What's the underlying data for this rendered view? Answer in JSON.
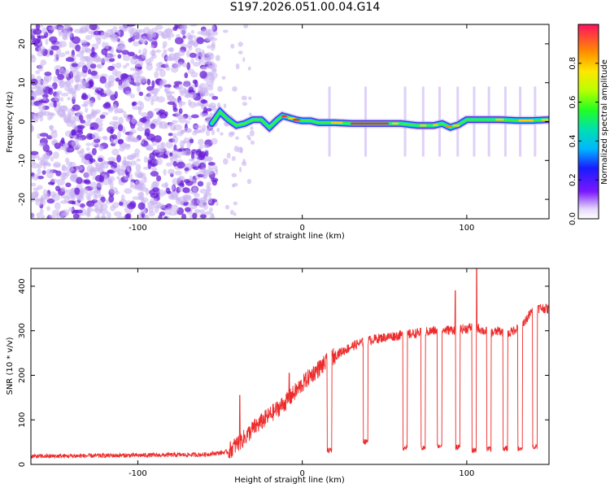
{
  "title": "S197.2026.051.00.04.G14",
  "colors": {
    "snr_line": "#ee2a2a",
    "axis": "#000000",
    "scatter_main": "#6a1fd8",
    "scatter_light": "#c9b3f0"
  },
  "chart_data": [
    {
      "type": "heatmap",
      "xlabel": "Height of straight line (km)",
      "ylabel": "Frequency (Hz)",
      "xlim": [
        -165,
        150
      ],
      "ylim": [
        -25,
        25
      ],
      "xticks": [
        -100,
        0,
        100
      ],
      "yticks": [
        -20,
        -10,
        0,
        10,
        20
      ],
      "xtick_labels": [
        "-100",
        "0",
        "100"
      ],
      "ytick_labels": [
        "-20",
        "-10",
        "0",
        "10",
        "20"
      ],
      "noise_region_km": [
        -165,
        -53
      ],
      "ridge": {
        "x": [
          -55,
          -50,
          -45,
          -40,
          -35,
          -30,
          -25,
          -20,
          -15,
          -12,
          -8,
          -4,
          0,
          5,
          10,
          20,
          30,
          40,
          50,
          60,
          70,
          80,
          85,
          90,
          95,
          100,
          110,
          120,
          130,
          140,
          150
        ],
        "freq": [
          -0.5,
          2.5,
          0.5,
          -1.0,
          -0.5,
          0.5,
          0.5,
          -1.5,
          0.5,
          1.5,
          1.0,
          0.5,
          0.2,
          0.2,
          -0.3,
          -0.3,
          -0.5,
          -0.5,
          -0.5,
          -0.5,
          -1.0,
          -1.0,
          -0.5,
          -1.5,
          -0.8,
          0.5,
          0.5,
          0.5,
          0.3,
          0.3,
          0.5
        ]
      },
      "colorbar": {
        "label": "Normalized spectral amplitude",
        "range": [
          0,
          1
        ],
        "ticks": [
          "0.0",
          "0.2",
          "0.4",
          "0.6",
          "0.8"
        ],
        "tick_values": [
          0.0,
          0.2,
          0.4,
          0.6,
          0.8
        ]
      }
    },
    {
      "type": "line",
      "xlabel": "Height of straight line (km)",
      "ylabel": "SNR (10 * v/v)",
      "xlim": [
        -165,
        150
      ],
      "ylim": [
        0,
        440
      ],
      "xticks": [
        -100,
        0,
        100
      ],
      "yticks": [
        0,
        100,
        200,
        300,
        400
      ],
      "xtick_labels": [
        "-100",
        "0",
        "100"
      ],
      "ytick_labels": [
        "0",
        "100",
        "200",
        "300",
        "400"
      ],
      "series": [
        {
          "name": "SNR",
          "trend_x": [
            -165,
            -60,
            -45,
            -40,
            -35,
            -30,
            -25,
            -20,
            -15,
            -10,
            -5,
            0,
            5,
            10,
            15,
            20,
            25,
            30,
            35,
            40,
            45,
            50,
            55,
            60,
            65,
            70,
            80,
            90,
            100,
            105,
            110,
            115,
            120,
            125,
            130,
            135,
            140,
            145,
            150
          ],
          "trend_y": [
            18,
            22,
            28,
            45,
            60,
            80,
            95,
            110,
            125,
            140,
            160,
            180,
            200,
            215,
            230,
            245,
            255,
            265,
            272,
            278,
            282,
            285,
            288,
            290,
            292,
            295,
            300,
            302,
            305,
            310,
            300,
            295,
            300,
            292,
            305,
            320,
            345,
            352,
            348
          ],
          "dropouts": [
            {
              "x": 16.5,
              "y": 25
            },
            {
              "x": 38.5,
              "y": 45
            },
            {
              "x": 62.5,
              "y": 32
            },
            {
              "x": 73.5,
              "y": 30
            },
            {
              "x": 83.5,
              "y": 35
            },
            {
              "x": 94.5,
              "y": 32
            },
            {
              "x": 104.5,
              "y": 25
            },
            {
              "x": 113.5,
              "y": 28
            },
            {
              "x": 123.5,
              "y": 30
            },
            {
              "x": 132.5,
              "y": 28
            },
            {
              "x": 141.5,
              "y": 35
            }
          ],
          "spikes": [
            {
              "x": -38,
              "y": 155
            },
            {
              "x": -8,
              "y": 205
            },
            {
              "x": 106,
              "y": 440
            },
            {
              "x": 93,
              "y": 390
            }
          ]
        }
      ]
    }
  ]
}
